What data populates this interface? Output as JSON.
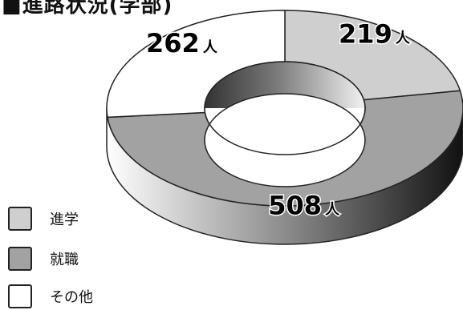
{
  "title": "■進路状況(学部)",
  "unit": "人",
  "chart_data": {
    "type": "pie",
    "title": "■進路状況(学部)",
    "legend_position": "bottom-left",
    "series": [
      {
        "name": "進学",
        "value": 219,
        "label": "219",
        "color": "#cfcfcf"
      },
      {
        "name": "就職",
        "value": 508,
        "label": "508",
        "color": "#a2a2a2"
      },
      {
        "name": "その他",
        "value": 262,
        "label": "262",
        "color": "#ffffff"
      }
    ]
  }
}
